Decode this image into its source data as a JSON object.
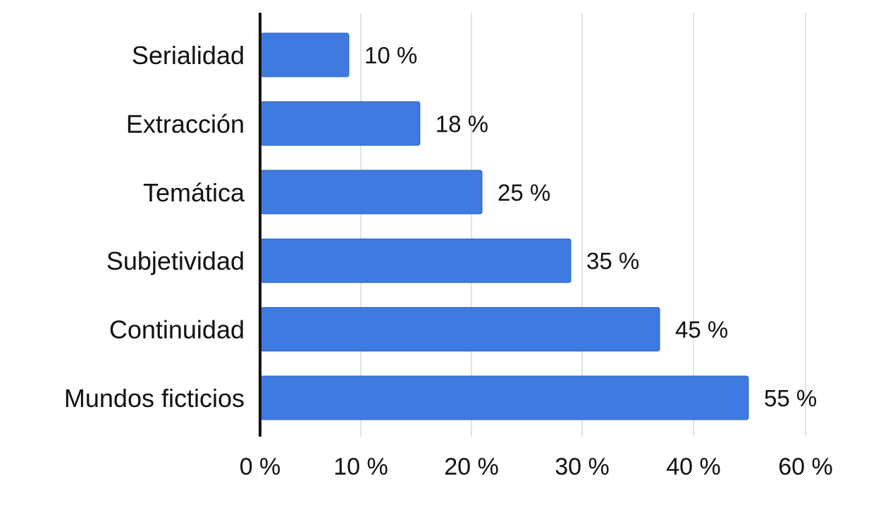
{
  "chart_data": {
    "type": "bar",
    "orientation": "horizontal",
    "categories": [
      "Serialidad",
      "Extracción",
      "Temática",
      "Subjetividad",
      "Continuidad",
      "Mundos ficticios"
    ],
    "values": [
      10,
      18,
      25,
      35,
      45,
      55
    ],
    "data_labels": [
      "10 %",
      "18 %",
      "25 %",
      "35 %",
      "45 %",
      "55 %"
    ],
    "x_ticks": [
      {
        "value": 0,
        "label": "0 %"
      },
      {
        "value": 10,
        "label": "10 %"
      },
      {
        "value": 20,
        "label": "20 %"
      },
      {
        "value": 30,
        "label": "30 %"
      },
      {
        "value": 40,
        "label": "40 %"
      },
      {
        "value": 60,
        "label": "60 %"
      }
    ],
    "grid": true,
    "colors": {
      "bar": "#3f7ae0",
      "bar_edge": "#2f62c4",
      "grid": "#d9d9d9",
      "axis": "#111111"
    }
  }
}
